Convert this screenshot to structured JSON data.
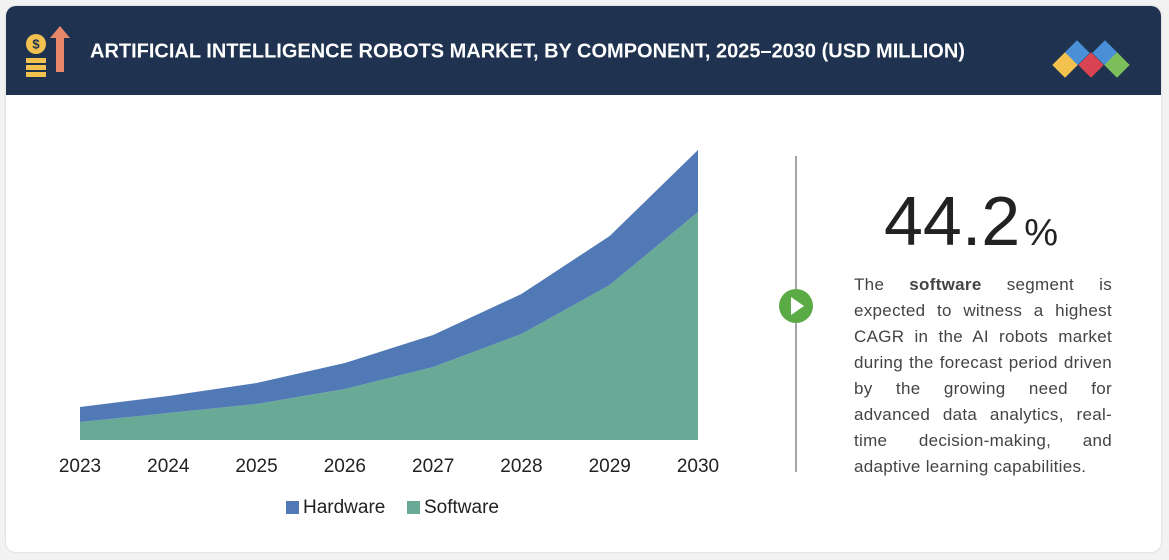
{
  "chart_data": {
    "type": "area",
    "title": "ARTIFICIAL INTELLIGENCE ROBOTS  MARKET, BY COMPONENT, 2025–2030 (USD MILLION)",
    "categories": [
      "2023",
      "2024",
      "2025",
      "2026",
      "2027",
      "2028",
      "2029",
      "2030"
    ],
    "stacked": true,
    "ylim": [
      0,
      290
    ],
    "series": [
      {
        "name": "Hardware",
        "color": "#5079b5",
        "values": [
          15,
          17,
          21,
          26,
          32,
          40,
          49,
          62
        ]
      },
      {
        "name": "Software",
        "color": "#69aa96",
        "values": [
          18,
          27,
          36,
          51,
          73,
          106,
          155,
          228
        ]
      }
    ]
  },
  "callout": {
    "value": "44.2",
    "unit": "%",
    "text": [
      "The ",
      "software",
      " segment is expected to witness a highest CAGR in the AI robots market during the forecast period driven by the growing need for advanced data analytics, real-time decision-making, and adaptive learning capabilities."
    ]
  }
}
